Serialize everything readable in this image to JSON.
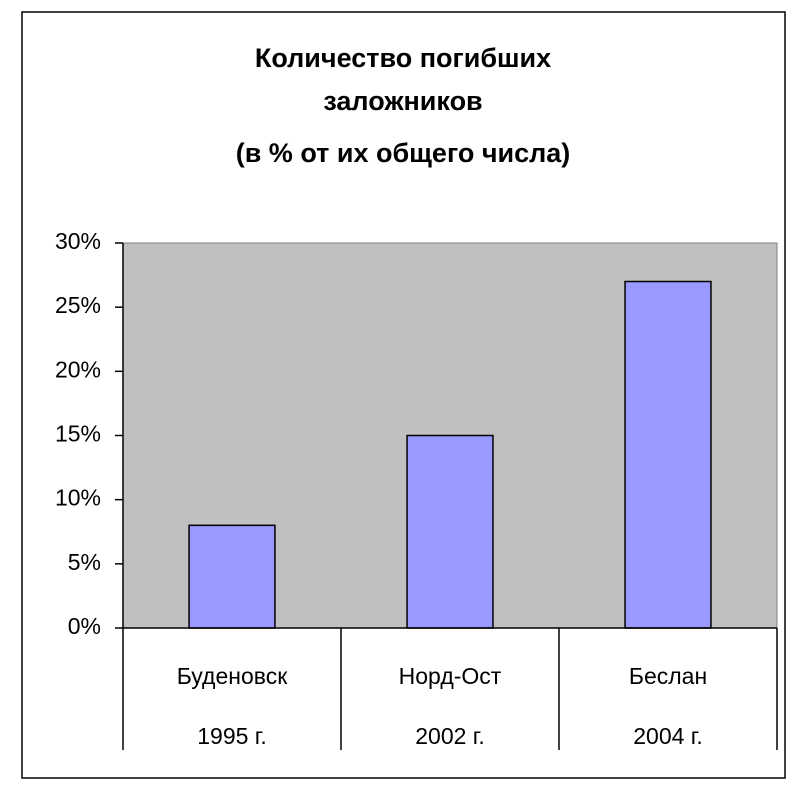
{
  "chart_data": {
    "type": "bar",
    "title": [
      "Количество погибших",
      "заложников",
      "(в % от их общего числа)"
    ],
    "categories": [
      [
        "Буденовск",
        "1995 г."
      ],
      [
        "Норд-Ост",
        "2002 г."
      ],
      [
        "Беслан",
        "2004 г."
      ]
    ],
    "values": [
      8,
      15,
      27
    ],
    "color": "#9999ff",
    "plot_background": "#c0c0c0",
    "ylim": [
      0,
      30
    ],
    "yticks": [
      {
        "value": 0,
        "label": "0%"
      },
      {
        "value": 5,
        "label": "5%"
      },
      {
        "value": 10,
        "label": "10%"
      },
      {
        "value": 15,
        "label": "15%"
      },
      {
        "value": 20,
        "label": "20%"
      },
      {
        "value": 25,
        "label": "25%"
      },
      {
        "value": 30,
        "label": "30%"
      }
    ],
    "grid": false
  }
}
